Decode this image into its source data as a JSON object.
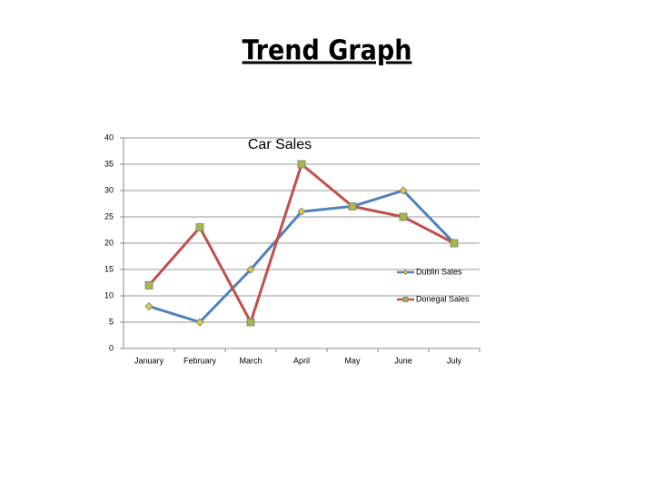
{
  "heading": "Trend Graph",
  "chart_data": {
    "type": "line",
    "title": "Car Sales",
    "categories": [
      "January",
      "February",
      "March",
      "April",
      "May",
      "June",
      "July"
    ],
    "series": [
      {
        "name": "Dublin Sales",
        "color": "#4f81bd",
        "marker": "diamond",
        "marker_color": "#d8cc40",
        "values": [
          8,
          5,
          15,
          26,
          27,
          30,
          20
        ]
      },
      {
        "name": "Donegal Sales",
        "color": "#c0504d",
        "marker": "square",
        "marker_color": "#a8b848",
        "values": [
          12,
          23,
          5,
          35,
          27,
          25,
          20
        ]
      }
    ],
    "ylim": [
      0,
      40
    ],
    "yticks": [
      0,
      5,
      10,
      15,
      20,
      25,
      30,
      35,
      40
    ],
    "grid": true,
    "legend": "right"
  }
}
